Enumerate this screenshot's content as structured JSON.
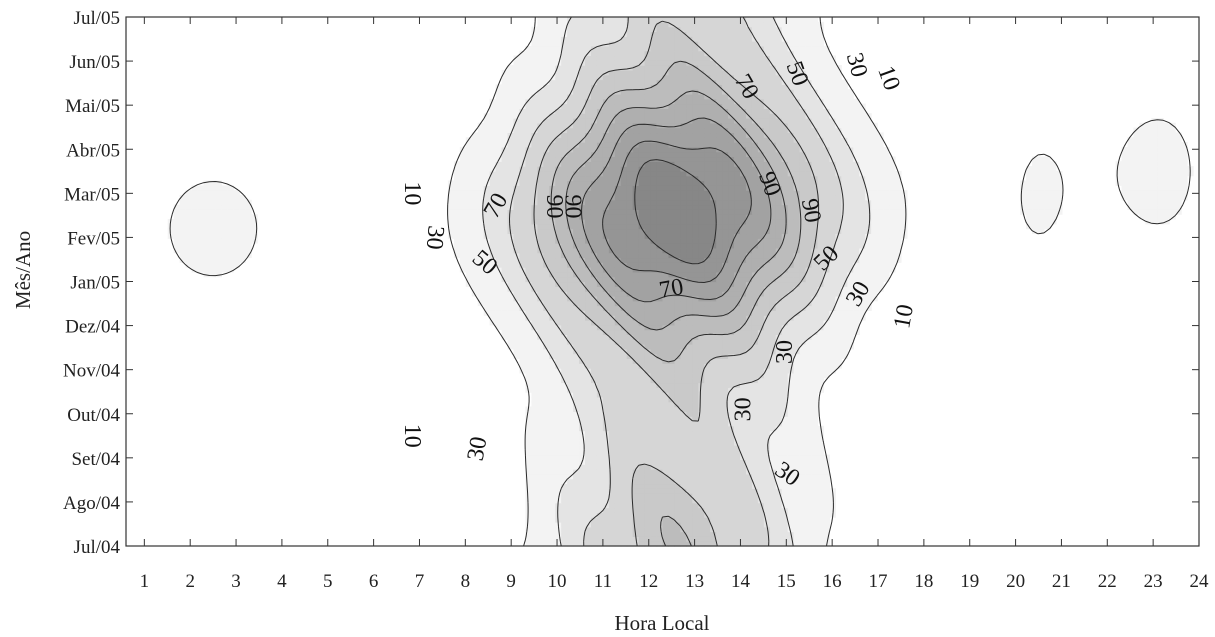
{
  "chart_data": {
    "type": "contour",
    "xlabel": "Hora Local",
    "ylabel": "Mês/Ano",
    "x_ticks": [
      "1",
      "2",
      "3",
      "4",
      "5",
      "6",
      "7",
      "8",
      "9",
      "10",
      "11",
      "12",
      "13",
      "14",
      "15",
      "16",
      "17",
      "18",
      "19",
      "20",
      "21",
      "22",
      "23",
      "24"
    ],
    "y_ticks": [
      "Jul/04",
      "Ago/04",
      "Set/04",
      "Out/04",
      "Nov/04",
      "Dez/04",
      "Jan/05",
      "Fev/05",
      "Mar/05",
      "Abr/05",
      "Mai/05",
      "Jun/05",
      "Jul/05"
    ],
    "xlim": [
      0.6,
      24
    ],
    "contour_levels": [
      10,
      20,
      30,
      40,
      50,
      60,
      70,
      80,
      90
    ],
    "labeled_levels": [
      10,
      30,
      50,
      70,
      90
    ],
    "peak_region": {
      "hour": 12.5,
      "month": "Fev/05"
    },
    "contour_labels": [
      {
        "text": "10",
        "hour": 6.8,
        "month_index": 8.0,
        "angle": 90
      },
      {
        "text": "30",
        "hour": 7.3,
        "month_index": 7.0,
        "angle": 95
      },
      {
        "text": "70",
        "hour": 8.7,
        "month_index": 7.7,
        "angle": -60
      },
      {
        "text": "90",
        "hour": 9.9,
        "month_index": 7.7,
        "angle": 90
      },
      {
        "text": "90",
        "hour": 10.3,
        "month_index": 7.7,
        "angle": 90
      },
      {
        "text": "70",
        "hour": 14.1,
        "month_index": 10.4,
        "angle": 60
      },
      {
        "text": "50",
        "hour": 15.2,
        "month_index": 10.7,
        "angle": 70
      },
      {
        "text": "30",
        "hour": 16.5,
        "month_index": 10.9,
        "angle": 75
      },
      {
        "text": "10",
        "hour": 17.2,
        "month_index": 10.6,
        "angle": 70
      },
      {
        "text": "90",
        "hour": 14.6,
        "month_index": 8.2,
        "angle": 70
      },
      {
        "text": "90",
        "hour": 15.5,
        "month_index": 7.6,
        "angle": 80
      },
      {
        "text": "50",
        "hour": 8.4,
        "month_index": 6.4,
        "angle": 40
      },
      {
        "text": "70",
        "hour": 12.5,
        "month_index": 5.8,
        "angle": -10
      },
      {
        "text": "50",
        "hour": 15.9,
        "month_index": 6.5,
        "angle": -45
      },
      {
        "text": "30",
        "hour": 16.6,
        "month_index": 5.7,
        "angle": -60
      },
      {
        "text": "10",
        "hour": 17.6,
        "month_index": 5.2,
        "angle": -80
      },
      {
        "text": "30",
        "hour": 15.0,
        "month_index": 4.4,
        "angle": -90
      },
      {
        "text": "30",
        "hour": 14.1,
        "month_index": 3.1,
        "angle": -90
      },
      {
        "text": "10",
        "hour": 6.8,
        "month_index": 2.5,
        "angle": 90
      },
      {
        "text": "30",
        "hour": 8.3,
        "month_index": 2.2,
        "angle": -80
      },
      {
        "text": "30",
        "hour": 15.0,
        "month_index": 1.6,
        "angle": 35
      }
    ]
  }
}
